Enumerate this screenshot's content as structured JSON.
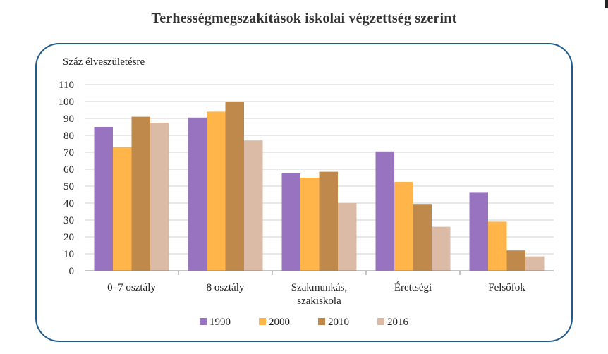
{
  "chart_data": {
    "type": "bar",
    "title": "Terhességmegszakítások iskolai végzettség szerint",
    "ylabel": "Száz élveszületésre",
    "xlabel": "",
    "ylim": [
      0,
      110
    ],
    "yticks": [
      0,
      10,
      20,
      30,
      40,
      50,
      60,
      70,
      80,
      90,
      100,
      110
    ],
    "grid": true,
    "legend_position": "bottom",
    "categories": [
      [
        "0–7 osztály"
      ],
      [
        "8 osztály"
      ],
      [
        "Szakmunkás,",
        "szakiskola"
      ],
      [
        "Érettségi"
      ],
      [
        "Felsőfok"
      ]
    ],
    "series": [
      {
        "name": "1990",
        "color": "#9873bf",
        "values": [
          85,
          90.5,
          57.5,
          70.5,
          46.5
        ]
      },
      {
        "name": "2000",
        "color": "#ffb54a",
        "values": [
          73,
          94,
          55,
          52.5,
          29
        ]
      },
      {
        "name": "2010",
        "color": "#c0894c",
        "values": [
          91,
          100,
          58.5,
          39.5,
          12
        ]
      },
      {
        "name": "2016",
        "color": "#dbbba6",
        "values": [
          87.5,
          77,
          40,
          26,
          8.5
        ]
      }
    ]
  }
}
